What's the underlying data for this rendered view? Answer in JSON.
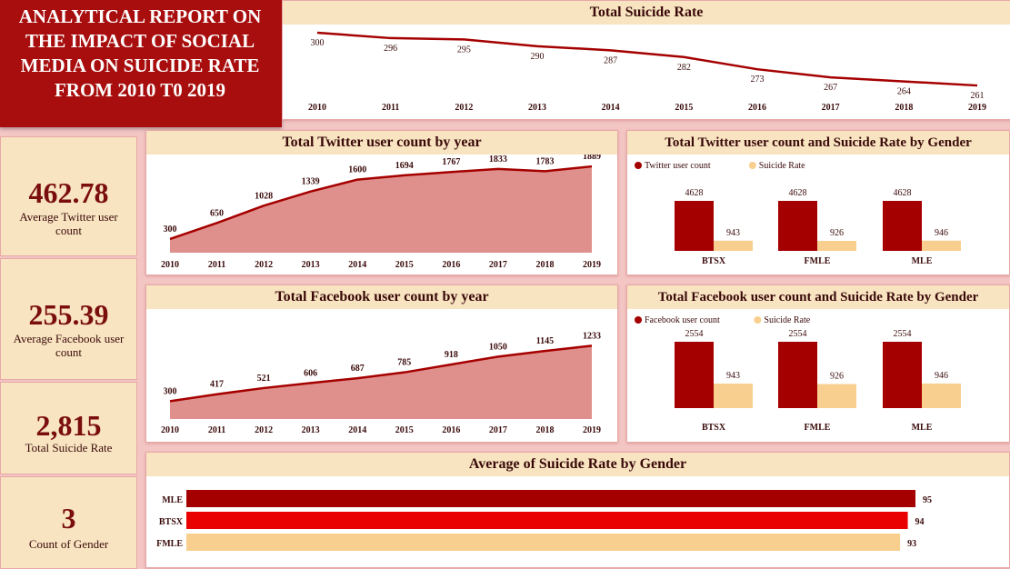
{
  "title": "ANALYTICAL REPORT ON THE IMPACT OF SOCIAL MEDIA ON SUICIDE RATE FROM 2010 T0 2019",
  "colors": {
    "dark_red": "#a50000",
    "bright_red": "#e90000",
    "peach": "#f9cf8f",
    "area_fill": "#e0908c",
    "title_bg": "#f8e4c1"
  },
  "kpis": [
    {
      "value": "462.78",
      "label": "Average Twitter user count"
    },
    {
      "value": "255.39",
      "label": "Average Facebook user count"
    },
    {
      "value": "2,815",
      "label": "Total Suicide Rate"
    },
    {
      "value": "3",
      "label": "Count of Gender"
    }
  ],
  "chart_data": [
    {
      "id": "suicide_line",
      "type": "line",
      "title": "Total Suicide Rate",
      "x": [
        "2010",
        "2011",
        "2012",
        "2013",
        "2014",
        "2015",
        "2016",
        "2017",
        "2018",
        "2019"
      ],
      "values": [
        300,
        296,
        295,
        290,
        287,
        282,
        273,
        267,
        264,
        261
      ],
      "ylim": [
        255,
        302
      ]
    },
    {
      "id": "twitter_area",
      "type": "area",
      "title": "Total Twitter user count by year",
      "x": [
        "2010",
        "2011",
        "2012",
        "2013",
        "2014",
        "2015",
        "2016",
        "2017",
        "2018",
        "2019"
      ],
      "values": [
        300,
        650,
        1028,
        1339,
        1600,
        1694,
        1767,
        1833,
        1783,
        1889
      ],
      "ylim": [
        0,
        1950
      ]
    },
    {
      "id": "facebook_area",
      "type": "area",
      "title": "Total Facebook user count by year",
      "x": [
        "2010",
        "2011",
        "2012",
        "2013",
        "2014",
        "2015",
        "2016",
        "2017",
        "2018",
        "2019"
      ],
      "values": [
        300,
        417,
        521,
        606,
        687,
        785,
        918,
        1050,
        1145,
        1233
      ],
      "ylim": [
        0,
        1300
      ]
    },
    {
      "id": "twitter_gender",
      "type": "bar",
      "title": "Total Twitter user count and Suicide Rate by Gender",
      "categories": [
        "BTSX",
        "FMLE",
        "MLE"
      ],
      "series": [
        {
          "name": "Twitter user count",
          "values": [
            4628,
            4628,
            4628
          ]
        },
        {
          "name": "Suicide Rate",
          "values": [
            943,
            926,
            946
          ]
        }
      ],
      "legend": "top-left"
    },
    {
      "id": "facebook_gender",
      "type": "bar",
      "title": "Total Facebook user count and Suicide Rate by Gender",
      "categories": [
        "BTSX",
        "FMLE",
        "MLE"
      ],
      "series": [
        {
          "name": "Facebook user count",
          "values": [
            2554,
            2554,
            2554
          ]
        },
        {
          "name": "Suicide Rate",
          "values": [
            943,
            926,
            946
          ]
        }
      ],
      "legend": "top-left"
    },
    {
      "id": "avg_gender",
      "type": "bar",
      "orientation": "horizontal",
      "title": "Average of Suicide Rate by Gender",
      "categories": [
        "MLE",
        "BTSX",
        "FMLE"
      ],
      "values": [
        95,
        94,
        93
      ],
      "bar_colors": [
        "#a50000",
        "#e90000",
        "#f9cf8f"
      ]
    }
  ]
}
